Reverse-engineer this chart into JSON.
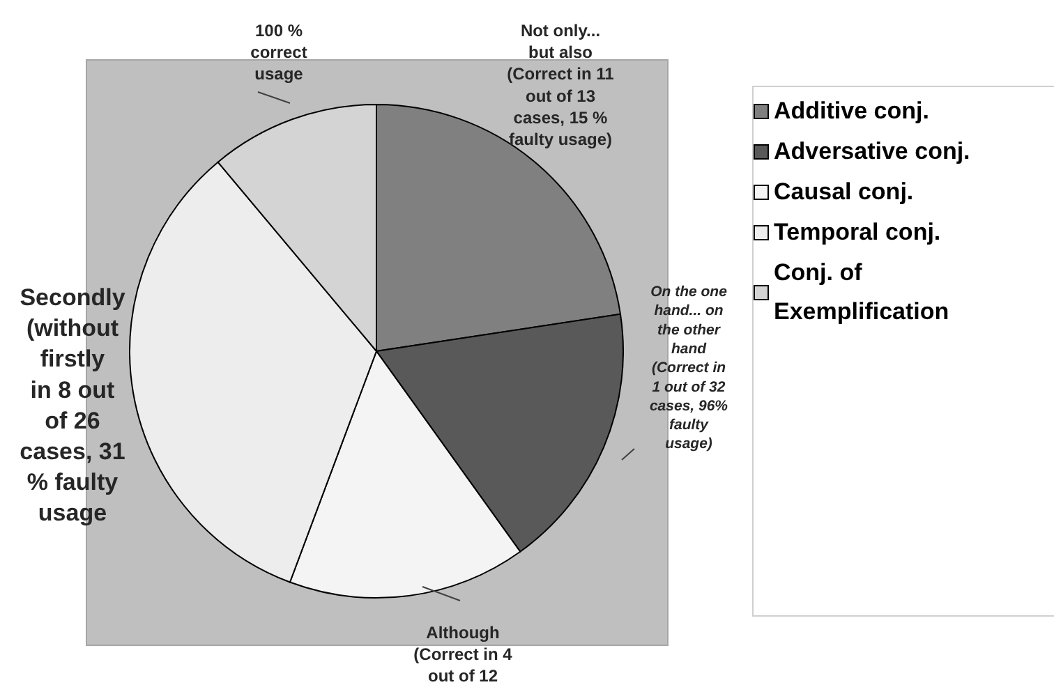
{
  "chart_data": {
    "type": "pie",
    "categories": [
      "Additive conj.",
      "Adversative conj.",
      "Causal conj.",
      "Temporal conj.",
      "Conj. of Exemplification"
    ],
    "values": [
      22.6,
      17.5,
      15.6,
      33.2,
      11.1
    ],
    "colors": [
      "#808080",
      "#595959",
      "#f4f4f4",
      "#ededed",
      "#d4d4d4"
    ],
    "annotations": [
      "Not only... but also (Correct in 11 out of 13 cases, 15 % faulty usage)",
      "On the one hand... on the other hand (Correct in 1 out of 32 cases, 96% faulty usage)",
      "Although (Correct in 4 out of 12",
      "Secondly (without firstly in 8 out of 26 cases, 31 % faulty usage",
      "100 % correct usage"
    ],
    "legend": "right"
  }
}
